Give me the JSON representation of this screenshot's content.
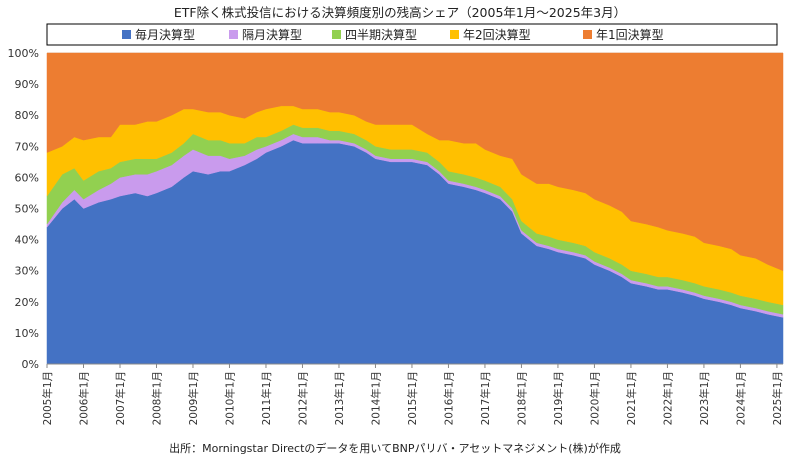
{
  "chart_data": {
    "type": "area",
    "stacked": true,
    "title": "ETF除く株式投信における決算頻度別の残高シェア（2005年1月～2025年3月）",
    "source": "出所：Morningstar Directのデータを用いてBNPパリバ・アセットマネジメント(株)が作成",
    "ylim": [
      0,
      100
    ],
    "y_unit": "%",
    "y_ticks": [
      "0%",
      "10%",
      "20%",
      "30%",
      "40%",
      "50%",
      "60%",
      "70%",
      "80%",
      "90%",
      "100%"
    ],
    "x_range": [
      "2005-01",
      "2025-03"
    ],
    "x_ticks": [
      "2005年1月",
      "2006年1月",
      "2007年1月",
      "2008年1月",
      "2009年1月",
      "2010年1月",
      "2011年1月",
      "2012年1月",
      "2013年1月",
      "2014年1月",
      "2015年1月",
      "2016年1月",
      "2017年1月",
      "2018年1月",
      "2019年1月",
      "2020年1月",
      "2021年1月",
      "2022年1月",
      "2023年1月",
      "2024年1月",
      "2025年1月"
    ],
    "legend_position": "top",
    "x": [
      "2005-01",
      "2005-06",
      "2005-10",
      "2006-01",
      "2006-06",
      "2006-10",
      "2007-01",
      "2007-06",
      "2007-10",
      "2008-01",
      "2008-06",
      "2008-10",
      "2009-01",
      "2009-06",
      "2009-10",
      "2010-01",
      "2010-06",
      "2010-10",
      "2011-01",
      "2011-06",
      "2011-10",
      "2012-01",
      "2012-06",
      "2012-10",
      "2013-01",
      "2013-06",
      "2013-10",
      "2014-01",
      "2014-06",
      "2014-10",
      "2015-01",
      "2015-06",
      "2015-10",
      "2016-01",
      "2016-06",
      "2016-10",
      "2017-01",
      "2017-06",
      "2017-10",
      "2018-01",
      "2018-06",
      "2018-10",
      "2019-01",
      "2019-06",
      "2019-10",
      "2020-01",
      "2020-06",
      "2020-10",
      "2021-01",
      "2021-06",
      "2021-10",
      "2022-01",
      "2022-06",
      "2022-10",
      "2023-01",
      "2023-06",
      "2023-10",
      "2024-01",
      "2024-06",
      "2024-10",
      "2025-03"
    ],
    "series": [
      {
        "name": "毎月決算型",
        "color": "#4472c4",
        "values": [
          44,
          50,
          53,
          50,
          52,
          53,
          54,
          55,
          54,
          55,
          57,
          60,
          62,
          61,
          62,
          62,
          64,
          66,
          68,
          70,
          72,
          71,
          71,
          71,
          71,
          70,
          68,
          66,
          65,
          65,
          65,
          64,
          61,
          58,
          57,
          56,
          55,
          53,
          49,
          42,
          38,
          37,
          36,
          35,
          34,
          32,
          30,
          28,
          26,
          25,
          24,
          24,
          23,
          22,
          21,
          20,
          19,
          18,
          17,
          16,
          15
        ]
      },
      {
        "name": "隔月決算型",
        "color": "#c99bed",
        "values": [
          1,
          2,
          3,
          3,
          4,
          5,
          6,
          6,
          7,
          7,
          7,
          7,
          7,
          6,
          5,
          4,
          3,
          3,
          2,
          2,
          2,
          2,
          2,
          1,
          1,
          1,
          1,
          1,
          1,
          1,
          1,
          1,
          1,
          1,
          1,
          1,
          1,
          1,
          1,
          1,
          1,
          1,
          1,
          1,
          1,
          1,
          1,
          1,
          1,
          1,
          1,
          1,
          1,
          1,
          1,
          1,
          1,
          1,
          1,
          1,
          1
        ]
      },
      {
        "name": "四半期決算型",
        "color": "#92d050",
        "values": [
          9,
          9,
          7,
          6,
          6,
          5,
          5,
          5,
          5,
          4,
          4,
          4,
          5,
          5,
          5,
          5,
          4,
          4,
          3,
          3,
          3,
          3,
          3,
          3,
          3,
          3,
          3,
          3,
          3,
          3,
          3,
          3,
          3,
          3,
          3,
          3,
          3,
          3,
          3,
          3,
          3,
          3,
          3,
          3,
          3,
          3,
          3,
          3,
          3,
          3,
          3,
          3,
          3,
          3,
          3,
          3,
          3,
          3,
          3,
          3,
          3
        ]
      },
      {
        "name": "年2回決算型",
        "color": "#ffc000",
        "values": [
          14,
          9,
          10,
          13,
          11,
          10,
          12,
          11,
          12,
          12,
          12,
          11,
          8,
          9,
          9,
          9,
          8,
          8,
          9,
          8,
          6,
          6,
          6,
          6,
          6,
          6,
          6,
          7,
          8,
          8,
          8,
          6,
          7,
          10,
          10,
          11,
          10,
          10,
          13,
          15,
          16,
          17,
          17,
          17,
          17,
          17,
          17,
          17,
          16,
          16,
          16,
          15,
          15,
          15,
          14,
          14,
          14,
          13,
          13,
          12,
          11
        ]
      },
      {
        "name": "年1回決算型",
        "color": "#ed7d31",
        "values": [
          32,
          30,
          27,
          28,
          27,
          27,
          23,
          23,
          22,
          22,
          20,
          18,
          18,
          19,
          19,
          20,
          21,
          19,
          18,
          17,
          17,
          18,
          18,
          19,
          19,
          20,
          22,
          23,
          23,
          23,
          23,
          26,
          28,
          28,
          29,
          29,
          31,
          33,
          34,
          39,
          42,
          42,
          43,
          44,
          45,
          47,
          49,
          51,
          54,
          55,
          56,
          57,
          58,
          59,
          61,
          62,
          63,
          65,
          66,
          68,
          70
        ]
      }
    ]
  }
}
